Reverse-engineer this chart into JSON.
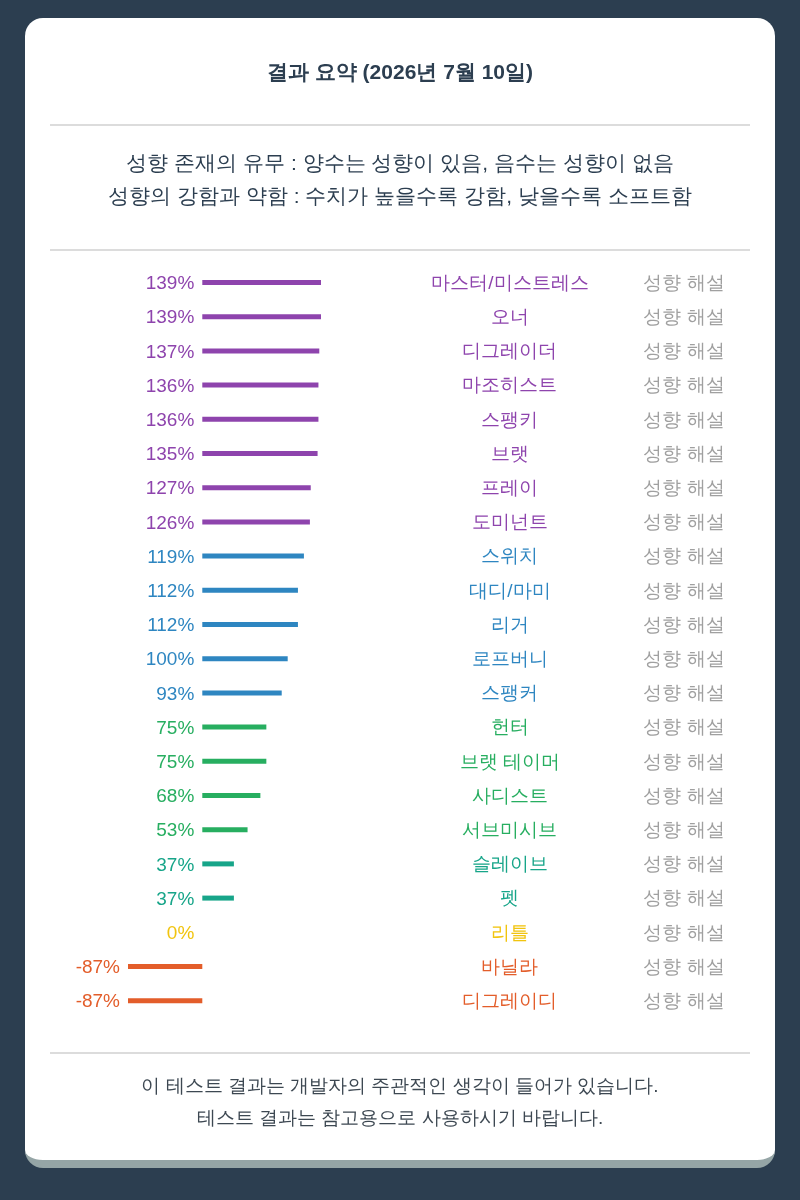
{
  "chart_data": {
    "type": "bar",
    "orientation": "horizontal",
    "title": "결과 요약 (2026년 7월 10일)",
    "subtitle": "성향 존재의 유무 : 양수는 성향이 있음, 음수는 성향이 없음\n성향의 강함과 약함 : 수치가 높을수록 강함, 낮을수록 소프트함",
    "categories": [
      "마스터/미스트레스",
      "오너",
      "디그레이더",
      "마조히스트",
      "스팽키",
      "브랫",
      "프레이",
      "도미넌트",
      "스위치",
      "대디/마미",
      "리거",
      "로프버니",
      "스팽커",
      "헌터",
      "브랫 테이머",
      "사디스트",
      "서브미시브",
      "슬레이브",
      "펫",
      "리틀",
      "바닐라",
      "디그레이디"
    ],
    "values": [
      139,
      139,
      137,
      136,
      136,
      135,
      127,
      126,
      119,
      112,
      112,
      100,
      93,
      75,
      75,
      68,
      53,
      37,
      37,
      0,
      -87,
      -87
    ],
    "colors": [
      "#8e44ad",
      "#8e44ad",
      "#8e44ad",
      "#8e44ad",
      "#8e44ad",
      "#8e44ad",
      "#8e44ad",
      "#8e44ad",
      "#2e86c1",
      "#2e86c1",
      "#2e86c1",
      "#2e86c1",
      "#2e86c1",
      "#27ae60",
      "#27ae60",
      "#27ae60",
      "#27ae60",
      "#17a589",
      "#17a589",
      "#f1c40f",
      "#e35d2a",
      "#e35d2a"
    ],
    "value_labels": [
      "139%",
      "139%",
      "137%",
      "136%",
      "136%",
      "135%",
      "127%",
      "126%",
      "119%",
      "112%",
      "112%",
      "100%",
      "93%",
      "75%",
      "75%",
      "68%",
      "53%",
      "37%",
      "37%",
      "0%",
      "-87%",
      "-87%"
    ],
    "annotations": [
      "성향 해설",
      "성향 해설",
      "성향 해설",
      "성향 해설",
      "성향 해설",
      "성향 해설",
      "성향 해설",
      "성향 해설",
      "성향 해설",
      "성향 해설",
      "성향 해설",
      "성향 해설",
      "성향 해설",
      "성향 해설",
      "성향 해설",
      "성향 해설",
      "성향 해설",
      "성향 해설",
      "성향 해설",
      "성향 해설",
      "성향 해설",
      "성향 해설",
      "이 테스트 결과는 개발자의 주관적인 생각이 들어가 있습니다.",
      "테스트 결과는 참고용으로 사용하시기 바랍니다."
    ]
  }
}
